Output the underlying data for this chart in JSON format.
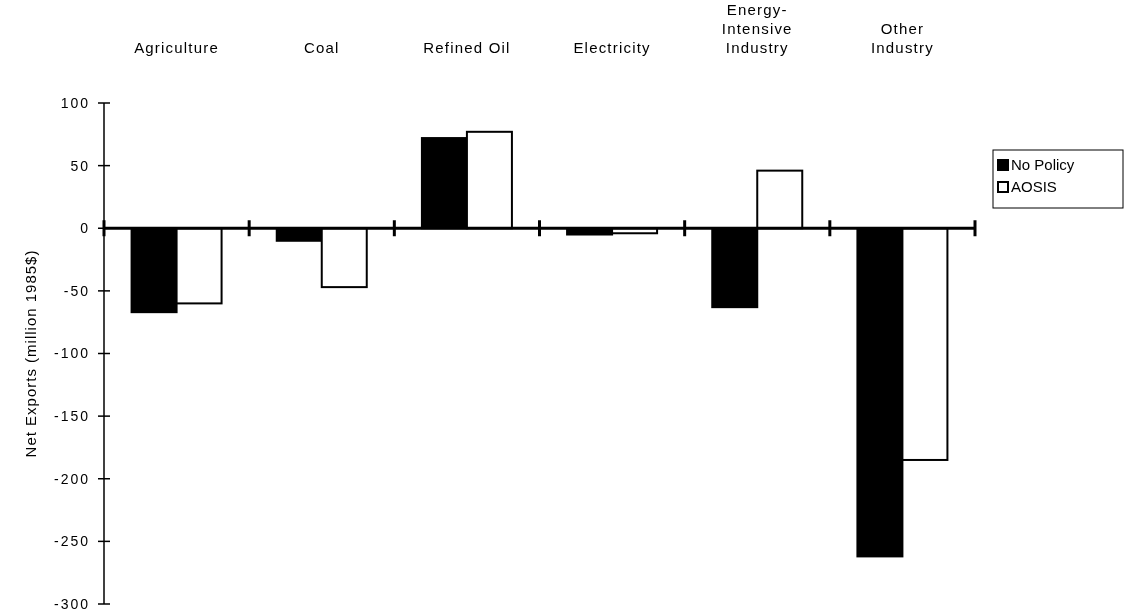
{
  "chart_data": {
    "type": "bar",
    "ylabel": "Net Exports  (million 1985$)",
    "categories": [
      "Agriculture",
      "Coal",
      "Refined Oil",
      "Electricity",
      "Energy-\nIntensive\nIndustry",
      "Other\nIndustry"
    ],
    "series": [
      {
        "name": "No Policy",
        "color": "#000000",
        "values": [
          -67,
          -10,
          72,
          -5,
          -63,
          -262
        ]
      },
      {
        "name": "AOSIS",
        "color": "#ffffff",
        "values": [
          -60,
          -47,
          77,
          -4,
          46,
          -185
        ]
      }
    ],
    "ylim": [
      -300,
      100
    ],
    "yticks": [
      -300,
      -250,
      -200,
      -150,
      -100,
      -50,
      0,
      50,
      100
    ],
    "legend": "right",
    "grid": false,
    "ref_lines": [
      {
        "axis": "y",
        "value": 0,
        "color": "#000000"
      }
    ]
  }
}
